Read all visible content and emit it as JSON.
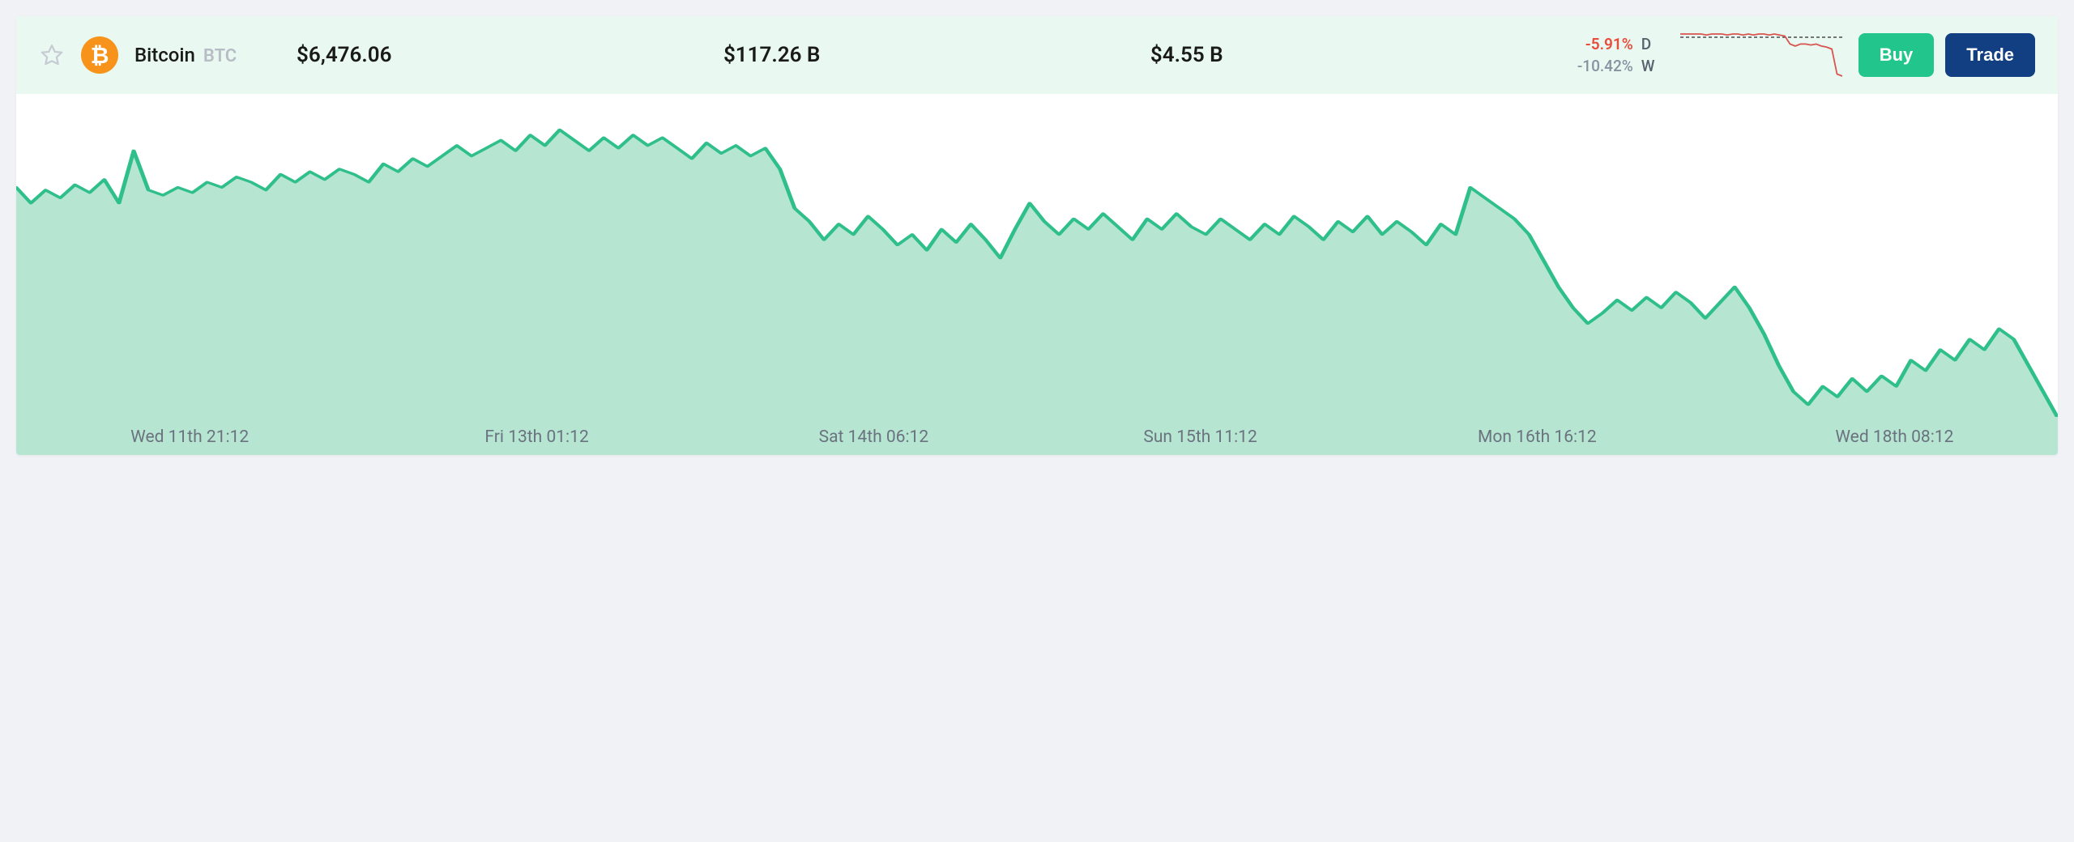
{
  "card": {
    "header_bg": "#e9f9f1",
    "body_bg": "#ffffff"
  },
  "favorite": {
    "active": false,
    "stroke": "#c7ccd4"
  },
  "coin": {
    "name": "Bitcoin",
    "symbol": "BTC",
    "logo_bg": "#f7931a",
    "logo_glyph": "₿"
  },
  "stats": {
    "price": "$6,476.06",
    "market_cap": "$117.26 B",
    "volume": "$4.55 B"
  },
  "changes": {
    "day": {
      "value": "-5.91%",
      "label": "D",
      "color": "#e74c3c"
    },
    "week": {
      "value": "-10.42%",
      "label": "W",
      "color": "#8892a0"
    }
  },
  "sparkline": {
    "stroke": "#d9534f",
    "dash_color": "#4a4a4a",
    "points": [
      100,
      100,
      100,
      100,
      100,
      99,
      100,
      100,
      100,
      99,
      100,
      100,
      99,
      100,
      99,
      100,
      100,
      99,
      100,
      99,
      98,
      90,
      88,
      90,
      90,
      89,
      90,
      88,
      87,
      85,
      60,
      58
    ]
  },
  "buttons": {
    "buy": {
      "label": "Buy",
      "bg": "#22c58b"
    },
    "trade": {
      "label": "Trade",
      "bg": "#123e82"
    }
  },
  "chart": {
    "type": "area",
    "stroke_color": "#2fbf8a",
    "fill_color": "#b6e6d1",
    "stroke_width": 3,
    "baseline_color": "#b6e6d1",
    "viewbox_w": 1500,
    "viewbox_h": 400,
    "y_range": [
      0,
      120
    ],
    "series": [
      88,
      82,
      87,
      84,
      89,
      86,
      91,
      82,
      102,
      87,
      85,
      88,
      86,
      90,
      88,
      92,
      90,
      87,
      93,
      90,
      94,
      91,
      95,
      93,
      90,
      97,
      94,
      99,
      96,
      100,
      104,
      100,
      103,
      106,
      102,
      108,
      104,
      110,
      106,
      102,
      107,
      103,
      108,
      104,
      107,
      103,
      99,
      105,
      101,
      104,
      100,
      103,
      95,
      80,
      75,
      68,
      74,
      70,
      77,
      72,
      66,
      70,
      64,
      72,
      67,
      74,
      68,
      61,
      72,
      82,
      75,
      70,
      76,
      72,
      78,
      73,
      68,
      76,
      72,
      78,
      73,
      70,
      76,
      72,
      68,
      74,
      70,
      77,
      73,
      68,
      75,
      71,
      77,
      70,
      75,
      71,
      66,
      74,
      70,
      88,
      84,
      80,
      76,
      70,
      60,
      50,
      42,
      36,
      40,
      45,
      41,
      46,
      42,
      48,
      44,
      38,
      44,
      50,
      42,
      32,
      20,
      10,
      5,
      12,
      8,
      15,
      10,
      16,
      12,
      22,
      18,
      26,
      22,
      30,
      26,
      34,
      30,
      20,
      10,
      0
    ],
    "x_labels": [
      "Wed 11th 21:12",
      "Fri 13th 01:12",
      "Sat 14th 06:12",
      "Sun 15th 11:12",
      "Mon 16th 16:12",
      "Wed 18th 08:12"
    ],
    "x_label_positions_pct": [
      8.5,
      25.5,
      42,
      58,
      74.5,
      92
    ],
    "x_label_color": "#6b7280",
    "x_label_fontsize": 21
  }
}
